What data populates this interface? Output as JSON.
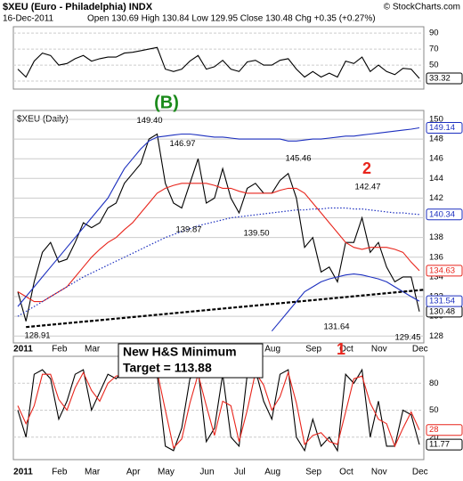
{
  "chart_data": [
    {
      "type": "line",
      "title": "$XEU (Euro - Philadelphia) INDX",
      "subtitle": "16-Dec-2011",
      "quote": "Open 130.69 High 130.84 Low 129.95 Close 130.48 Chg +0.35 (+0.27%)",
      "source": "© StockCharts.com",
      "color": "#000000",
      "values": [
        45,
        35,
        55,
        65,
        62,
        50,
        52,
        58,
        62,
        55,
        58,
        60,
        60,
        65,
        66,
        68,
        70,
        72,
        45,
        42,
        45,
        55,
        62,
        45,
        48,
        56,
        45,
        42,
        54,
        56,
        50,
        50,
        56,
        58,
        45,
        35,
        42,
        35,
        40,
        35,
        55,
        52,
        60,
        42,
        50,
        42,
        38,
        46,
        45,
        33.32
      ],
      "ylim": [
        20,
        98
      ],
      "yticks": [
        90,
        70,
        50,
        30
      ],
      "grid": true
    },
    {
      "type": "line",
      "label": "$XEU (Daily)",
      "categories": [
        "2011",
        null,
        null,
        null,
        "Feb",
        null,
        null,
        null,
        "Mar",
        null,
        null,
        null,
        null,
        "Apr",
        null,
        null,
        null,
        "May",
        null,
        null,
        null,
        null,
        "Jun",
        null,
        null,
        null,
        "Jul",
        null,
        null,
        null,
        "Aug",
        null,
        null,
        null,
        null,
        "Sep",
        null,
        null,
        null,
        "Oct",
        null,
        null,
        null,
        "Nov",
        null,
        null,
        null,
        null,
        "Dec",
        null
      ],
      "series": [
        {
          "color": "#000000",
          "style": "solid",
          "values": [
            132.5,
            129.5,
            133.5,
            136.5,
            137.5,
            135.5,
            135.8,
            137.5,
            139.5,
            139,
            139.5,
            141,
            141.5,
            143.5,
            144.5,
            145.5,
            148,
            148.5,
            143.5,
            141.5,
            141,
            143.5,
            146,
            141.5,
            142,
            145,
            142,
            140.5,
            143,
            143.5,
            142.5,
            142.5,
            143.8,
            144.5,
            142,
            137,
            138,
            134.5,
            135,
            133.5,
            137.5,
            137.5,
            140,
            136.5,
            137.5,
            135,
            133.5,
            134,
            134,
            130.48
          ]
        },
        {
          "color": "#e8251c",
          "style": "solid",
          "values": [
            132.5,
            132,
            131.5,
            131.5,
            132,
            132.5,
            133,
            134,
            135,
            136,
            136.8,
            137.5,
            138,
            138.8,
            139.5,
            140.5,
            141.5,
            142.5,
            143,
            143.3,
            143.5,
            143.5,
            143.5,
            143.5,
            143.3,
            143,
            143,
            142.7,
            142.5,
            142.5,
            142.5,
            142.5,
            142.8,
            143,
            143,
            142.5,
            141.5,
            140.5,
            139.5,
            138.5,
            137.5,
            137,
            136.8,
            137,
            137,
            137,
            136.8,
            136.5,
            135.5,
            134.63
          ]
        },
        {
          "color": "#1c2fbf",
          "style": "solid",
          "values": [
            131,
            132,
            133,
            134,
            135,
            136,
            137,
            138,
            139,
            140,
            141,
            142,
            143.5,
            145,
            146,
            147,
            147.8,
            148.2,
            148.3,
            148.4,
            148.5,
            148.5,
            148.4,
            148.3,
            148.2,
            148.2,
            148.1,
            148,
            148,
            148,
            148,
            148,
            148,
            147.8,
            147.8,
            147.9,
            148,
            148,
            148.1,
            148.2,
            148.3,
            148.3,
            148.4,
            148.5,
            148.6,
            148.7,
            148.8,
            148.9,
            149,
            149.14
          ]
        },
        {
          "color": "#1c2fbf",
          "style": "dotted",
          "values": [
            130,
            130.5,
            131,
            131.5,
            132,
            132.5,
            133,
            133.5,
            134,
            134.4,
            134.8,
            135.2,
            135.6,
            136,
            136.4,
            136.8,
            137.2,
            137.6,
            138,
            138.3,
            138.6,
            138.9,
            139.2,
            139.4,
            139.6,
            139.8,
            140,
            140.1,
            140.2,
            140.3,
            140.4,
            140.5,
            140.6,
            140.7,
            140.8,
            140.8,
            140.9,
            140.9,
            141,
            141,
            141,
            140.9,
            140.9,
            140.8,
            140.7,
            140.6,
            140.5,
            140.5,
            140.4,
            140.34
          ]
        },
        {
          "color": "#1c2fbf",
          "style": "solid",
          "values": [
            null,
            null,
            null,
            null,
            null,
            null,
            null,
            null,
            null,
            null,
            null,
            null,
            null,
            null,
            null,
            null,
            null,
            null,
            null,
            null,
            null,
            null,
            null,
            null,
            null,
            null,
            null,
            null,
            null,
            null,
            null,
            128.5,
            129.5,
            130.5,
            131.5,
            132.5,
            133,
            133.5,
            133.8,
            134,
            134.2,
            134.3,
            134.2,
            134,
            133.8,
            133.5,
            133,
            132.5,
            132,
            131.54
          ]
        }
      ],
      "trendline": [
        128.91,
        132.7
      ],
      "annotations": [
        {
          "label": "(B)",
          "color": "#1a8a1a"
        },
        {
          "label": "2",
          "color": "#e8251c"
        },
        {
          "label": "1",
          "color": "#e8251c"
        }
      ],
      "price_labels": [
        {
          "value": 149.4,
          "label": "149.40"
        },
        {
          "value": 146.97,
          "label": "146.97"
        },
        {
          "value": 145.46,
          "label": "145.46"
        },
        {
          "value": 142.47,
          "label": "142.47"
        },
        {
          "value": 139.87,
          "label": "139.87"
        },
        {
          "value": 139.5,
          "label": "139.50"
        },
        {
          "value": 131.64,
          "label": "131.64"
        },
        {
          "value": 129.45,
          "label": "129.45"
        },
        {
          "value": 128.91,
          "label": "128.91"
        }
      ],
      "target_box": [
        "New H&S Minimum",
        "Target = 113.88"
      ],
      "ylim": [
        127.3,
        150.9
      ],
      "yticks": [
        128,
        130,
        132,
        134,
        136,
        138,
        140,
        142,
        144,
        146,
        148,
        150
      ],
      "grid": true
    },
    {
      "type": "line",
      "series": [
        {
          "color": "#000000",
          "values": [
            50,
            20,
            90,
            95,
            85,
            40,
            60,
            90,
            95,
            50,
            70,
            90,
            85,
            95,
            95,
            95,
            95,
            90,
            10,
            5,
            30,
            85,
            95,
            15,
            30,
            90,
            20,
            10,
            90,
            95,
            60,
            40,
            90,
            95,
            20,
            5,
            40,
            10,
            20,
            5,
            90,
            80,
            95,
            20,
            60,
            10,
            10,
            50,
            45,
            11.77
          ]
        },
        {
          "color": "#e8251c",
          "values": [
            55,
            35,
            55,
            90,
            90,
            62,
            50,
            75,
            92,
            72,
            60,
            80,
            88,
            90,
            95,
            95,
            95,
            93,
            50,
            8,
            18,
            58,
            90,
            55,
            22,
            60,
            55,
            15,
            50,
            92,
            78,
            50,
            65,
            92,
            58,
            12,
            22,
            25,
            15,
            12,
            48,
            85,
            88,
            58,
            40,
            35,
            10,
            30,
            48,
            28
          ]
        }
      ],
      "ylim": [
        -5,
        110
      ],
      "yticks": [
        80,
        50,
        20
      ],
      "grid": true
    }
  ]
}
